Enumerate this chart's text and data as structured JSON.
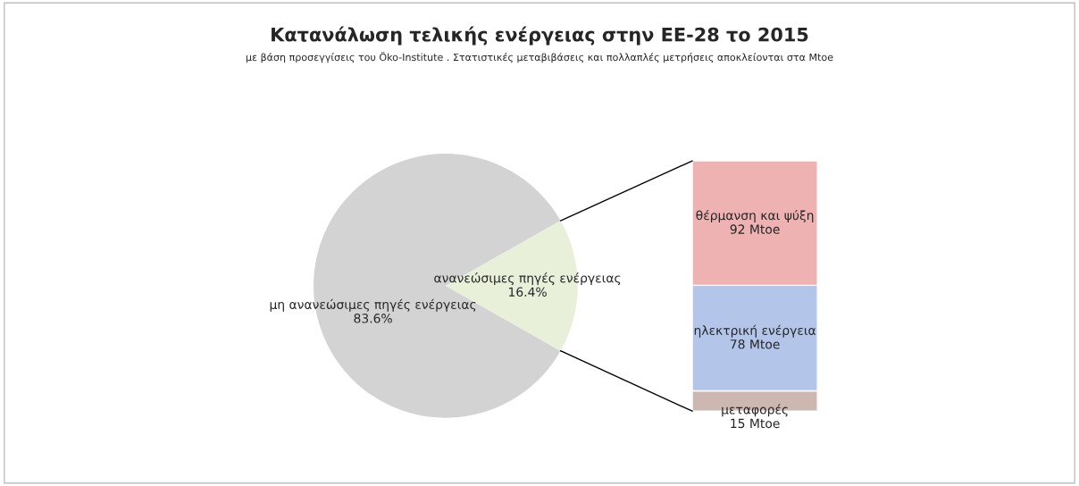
{
  "chart_data": [
    {
      "type": "pie",
      "title": "Κατανάλωση τελικής ενέργειας στην ΕΕ-28 το 2015",
      "subtitle": "με βάση προσεγγίσεις του Öko-Institute . Στατιστικές μεταβιβάσεις και πολλαπλές μετρήσεις αποκλείονται στα Mtoe",
      "categories": [
        "μη ανανεώσιμες πηγές ενέργειας",
        "ανανεώσιμες πηγές ενέργειας"
      ],
      "values": [
        83.6,
        16.4
      ],
      "value_labels": [
        "83.6%",
        "16.4%"
      ],
      "colors": [
        "#d3d3d3",
        "#e8f0da"
      ],
      "legend": false
    },
    {
      "type": "bar",
      "stacked": true,
      "categories": [
        null
      ],
      "series": [
        {
          "name": "μεταφορές",
          "color": "#cdb8b1",
          "values": [
            15
          ],
          "value_labels": [
            "15 Mtoe"
          ]
        },
        {
          "name": "ηλεκτρική ενέργεια",
          "color": "#b3c6ea",
          "values": [
            78
          ],
          "value_labels": [
            "78 Mtoe"
          ]
        },
        {
          "name": "θέρμανση και ψύξη",
          "color": "#eeb2b2",
          "values": [
            92
          ],
          "value_labels": [
            "92 Mtoe"
          ]
        }
      ],
      "legend": false
    }
  ]
}
